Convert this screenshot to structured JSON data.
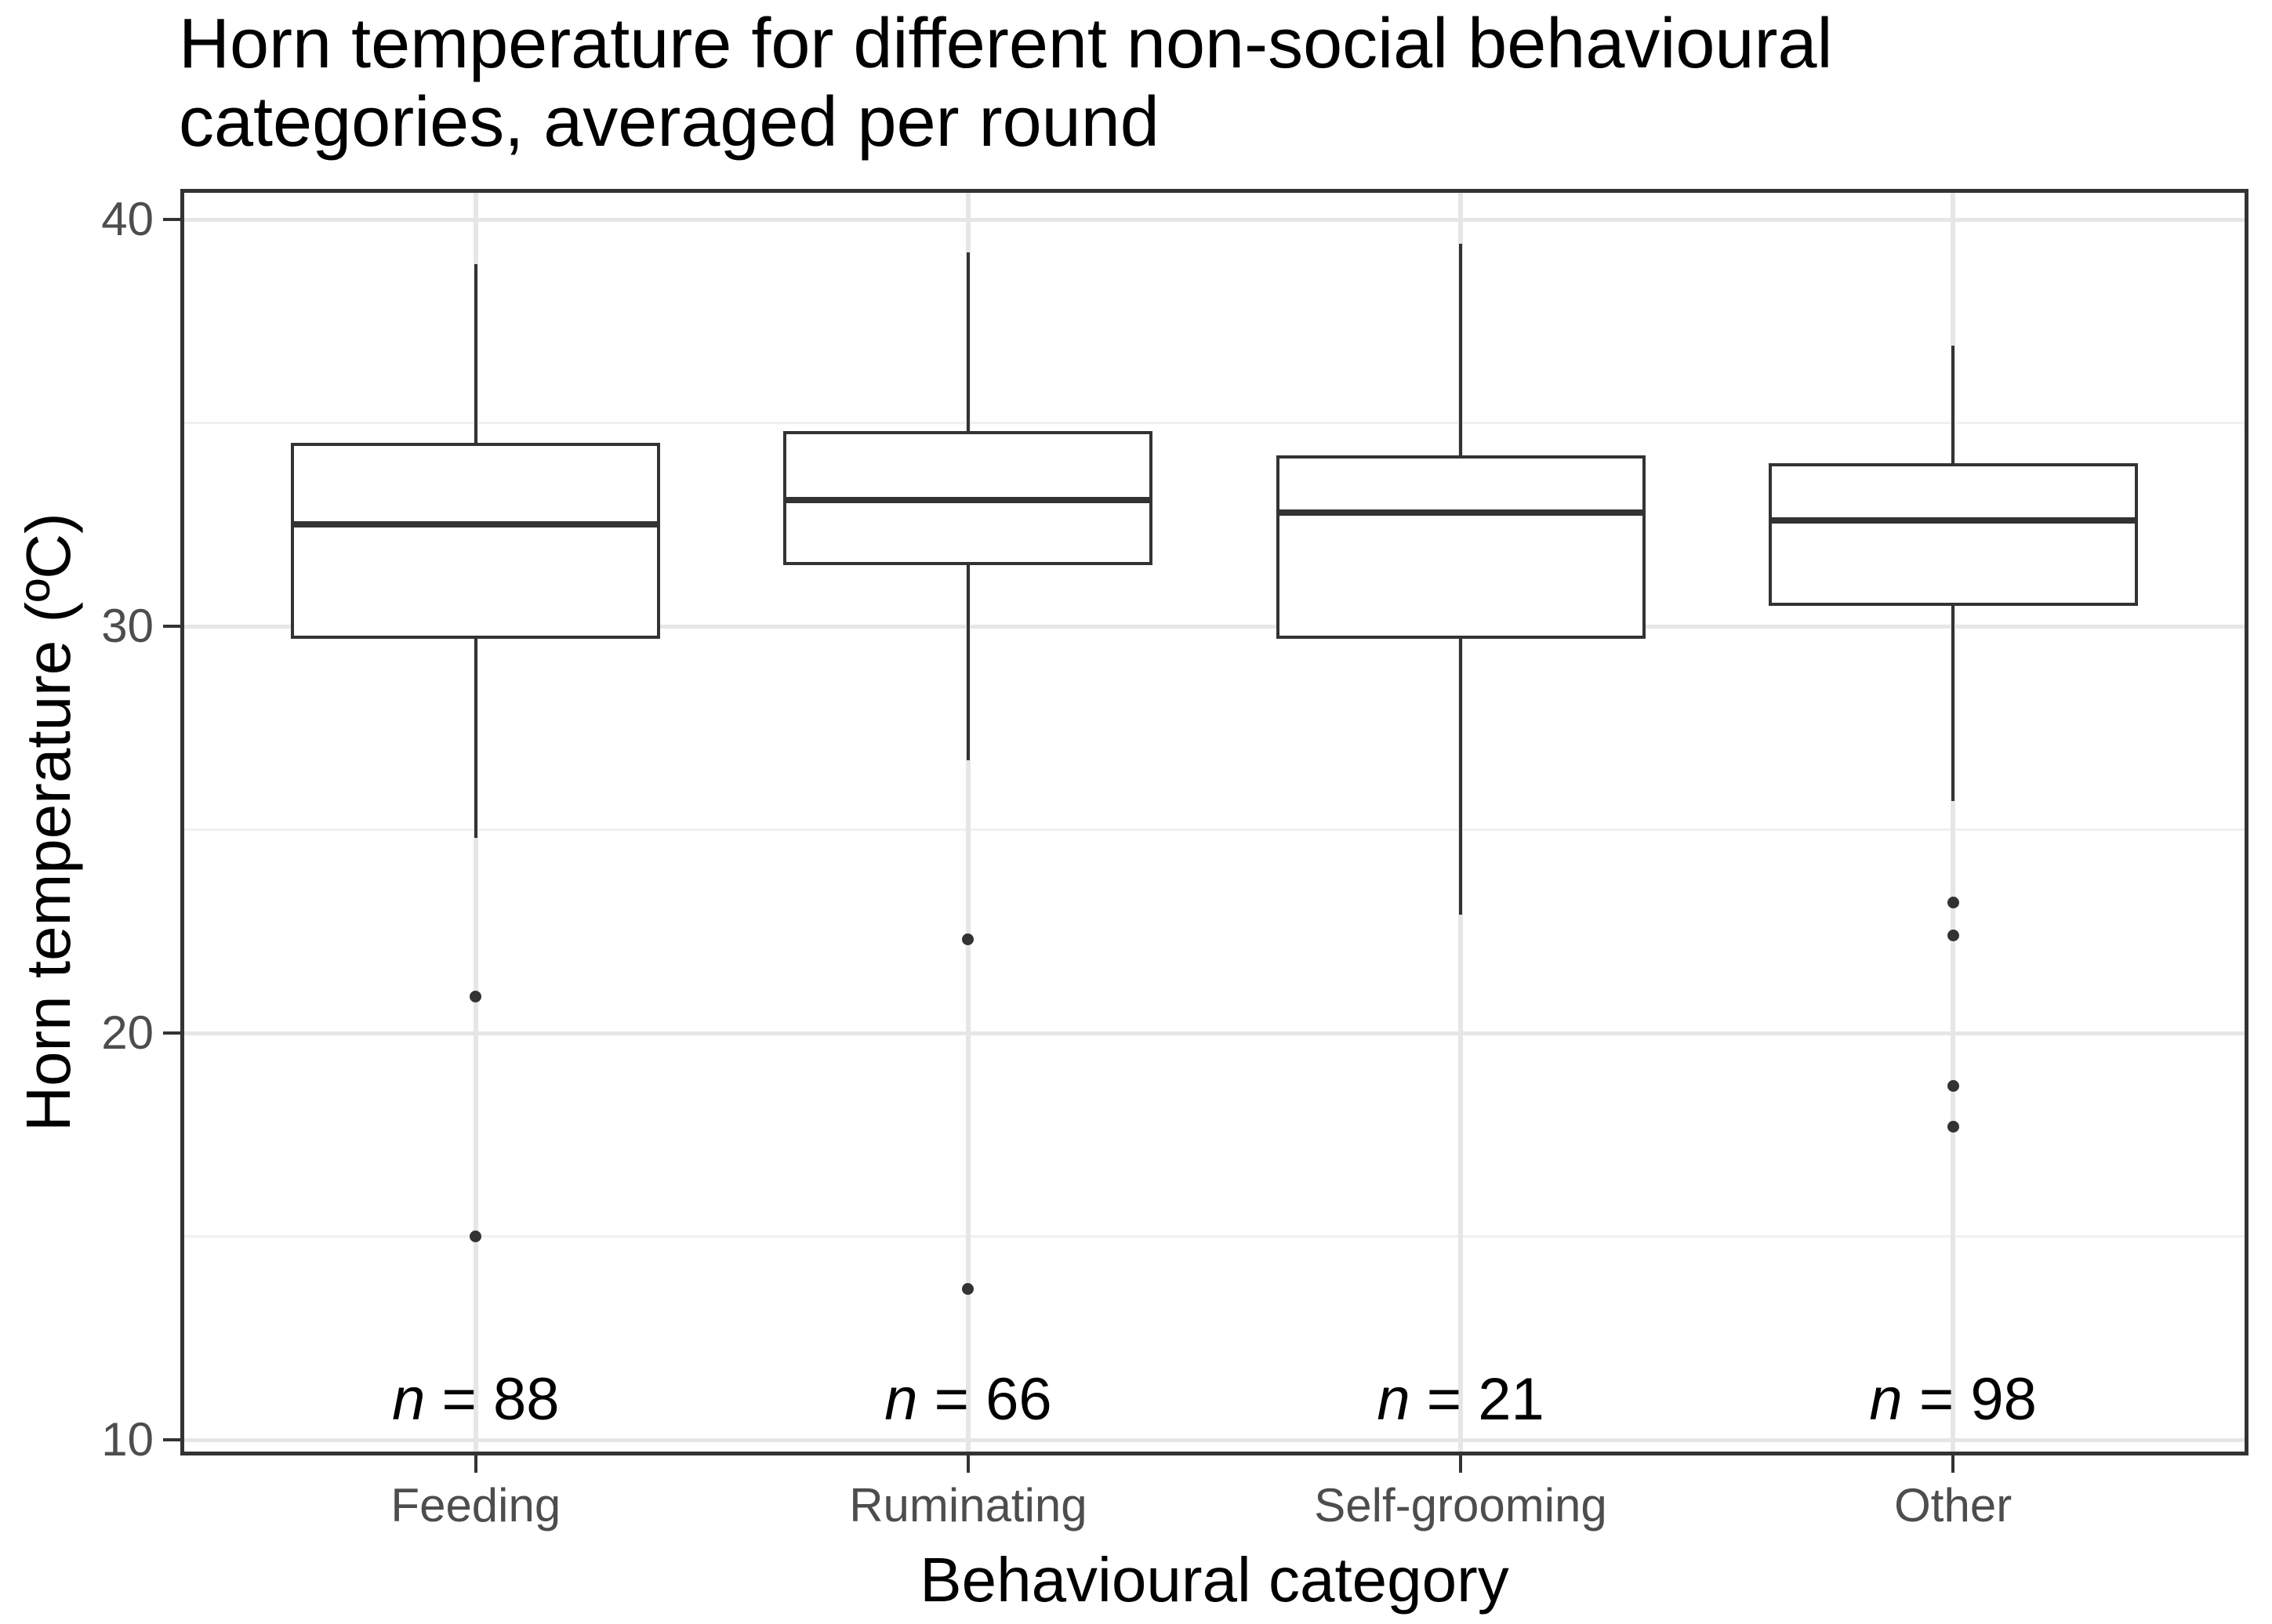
{
  "page": {
    "background": "#FFFFFF"
  },
  "chart_data": {
    "type": "boxplot",
    "title": {
      "line1": "Horn temperature for different non-social behavioural",
      "line2": "categories, averaged per round"
    },
    "xlabel": "Behavioural category",
    "ylabel": "Horn temperature (ºC)",
    "y_axis": {
      "ticks": [
        40,
        30,
        20,
        10
      ],
      "minor_ticks": [
        35,
        25,
        15
      ],
      "range_shown": [
        9.6,
        40.8
      ],
      "grid": true
    },
    "x_axis": {
      "categories": [
        "Feeding",
        "Ruminating",
        "Self-grooming",
        "Other"
      ]
    },
    "sample_sizes": {
      "symbol": "n",
      "separator": " = ",
      "values": [
        "88",
        "66",
        "21",
        "98"
      ]
    },
    "series": [
      {
        "category": "Feeding",
        "n": 88,
        "whisker_low": 24.8,
        "q1": 29.7,
        "median": 32.5,
        "q3": 34.5,
        "whisker_high": 38.9,
        "outliers": [
          20.9,
          15.0
        ]
      },
      {
        "category": "Ruminating",
        "n": 66,
        "whisker_low": 26.7,
        "q1": 31.5,
        "median": 33.1,
        "q3": 34.8,
        "whisker_high": 39.2,
        "outliers": [
          22.3,
          13.7
        ]
      },
      {
        "category": "Self-grooming",
        "n": 21,
        "whisker_low": 22.9,
        "q1": 29.7,
        "median": 32.8,
        "q3": 34.2,
        "whisker_high": 39.4,
        "outliers": []
      },
      {
        "category": "Other",
        "n": 98,
        "whisker_low": 25.7,
        "q1": 30.5,
        "median": 32.6,
        "q3": 34.0,
        "whisker_high": 36.9,
        "outliers": [
          23.2,
          22.4,
          18.7,
          17.7
        ]
      }
    ],
    "colors": {
      "stroke": "#333333",
      "grid_major": "#E6E6E6",
      "grid_minor": "#F0F0F0",
      "axis_text": "#4D4D4D",
      "title_text": "#000000",
      "panel_border": "#333333",
      "box_fill": "#FFFFFF"
    }
  }
}
